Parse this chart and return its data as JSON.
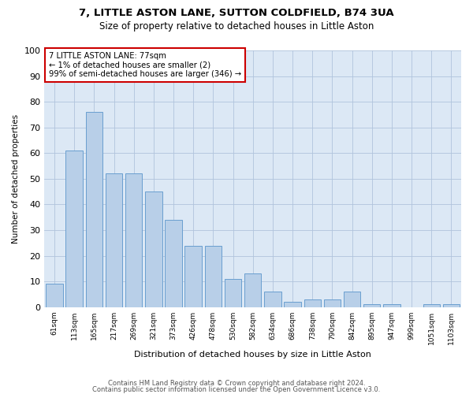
{
  "title1": "7, LITTLE ASTON LANE, SUTTON COLDFIELD, B74 3UA",
  "title2": "Size of property relative to detached houses in Little Aston",
  "xlabel": "Distribution of detached houses by size in Little Aston",
  "ylabel": "Number of detached properties",
  "categories": [
    "61sqm",
    "113sqm",
    "165sqm",
    "217sqm",
    "269sqm",
    "321sqm",
    "373sqm",
    "426sqm",
    "478sqm",
    "530sqm",
    "582sqm",
    "634sqm",
    "686sqm",
    "738sqm",
    "790sqm",
    "842sqm",
    "895sqm",
    "947sqm",
    "999sqm",
    "1051sqm",
    "1103sqm"
  ],
  "values": [
    9,
    61,
    76,
    52,
    52,
    45,
    34,
    24,
    24,
    11,
    13,
    6,
    2,
    3,
    3,
    6,
    1,
    1,
    0,
    1,
    1
  ],
  "bar_color": "#b8cfe8",
  "bar_edge_color": "#6a9fd0",
  "annotation_text": "7 LITTLE ASTON LANE: 77sqm\n← 1% of detached houses are smaller (2)\n99% of semi-detached houses are larger (346) →",
  "annotation_box_color": "#ffffff",
  "annotation_box_edge_color": "#cc0000",
  "footer1": "Contains HM Land Registry data © Crown copyright and database right 2024.",
  "footer2": "Contains public sector information licensed under the Open Government Licence v3.0.",
  "bg_color": "#ffffff",
  "plot_bg_color": "#dce8f5",
  "grid_color": "#b0c4dc",
  "ylim": [
    0,
    100
  ],
  "yticks": [
    0,
    10,
    20,
    30,
    40,
    50,
    60,
    70,
    80,
    90,
    100
  ]
}
